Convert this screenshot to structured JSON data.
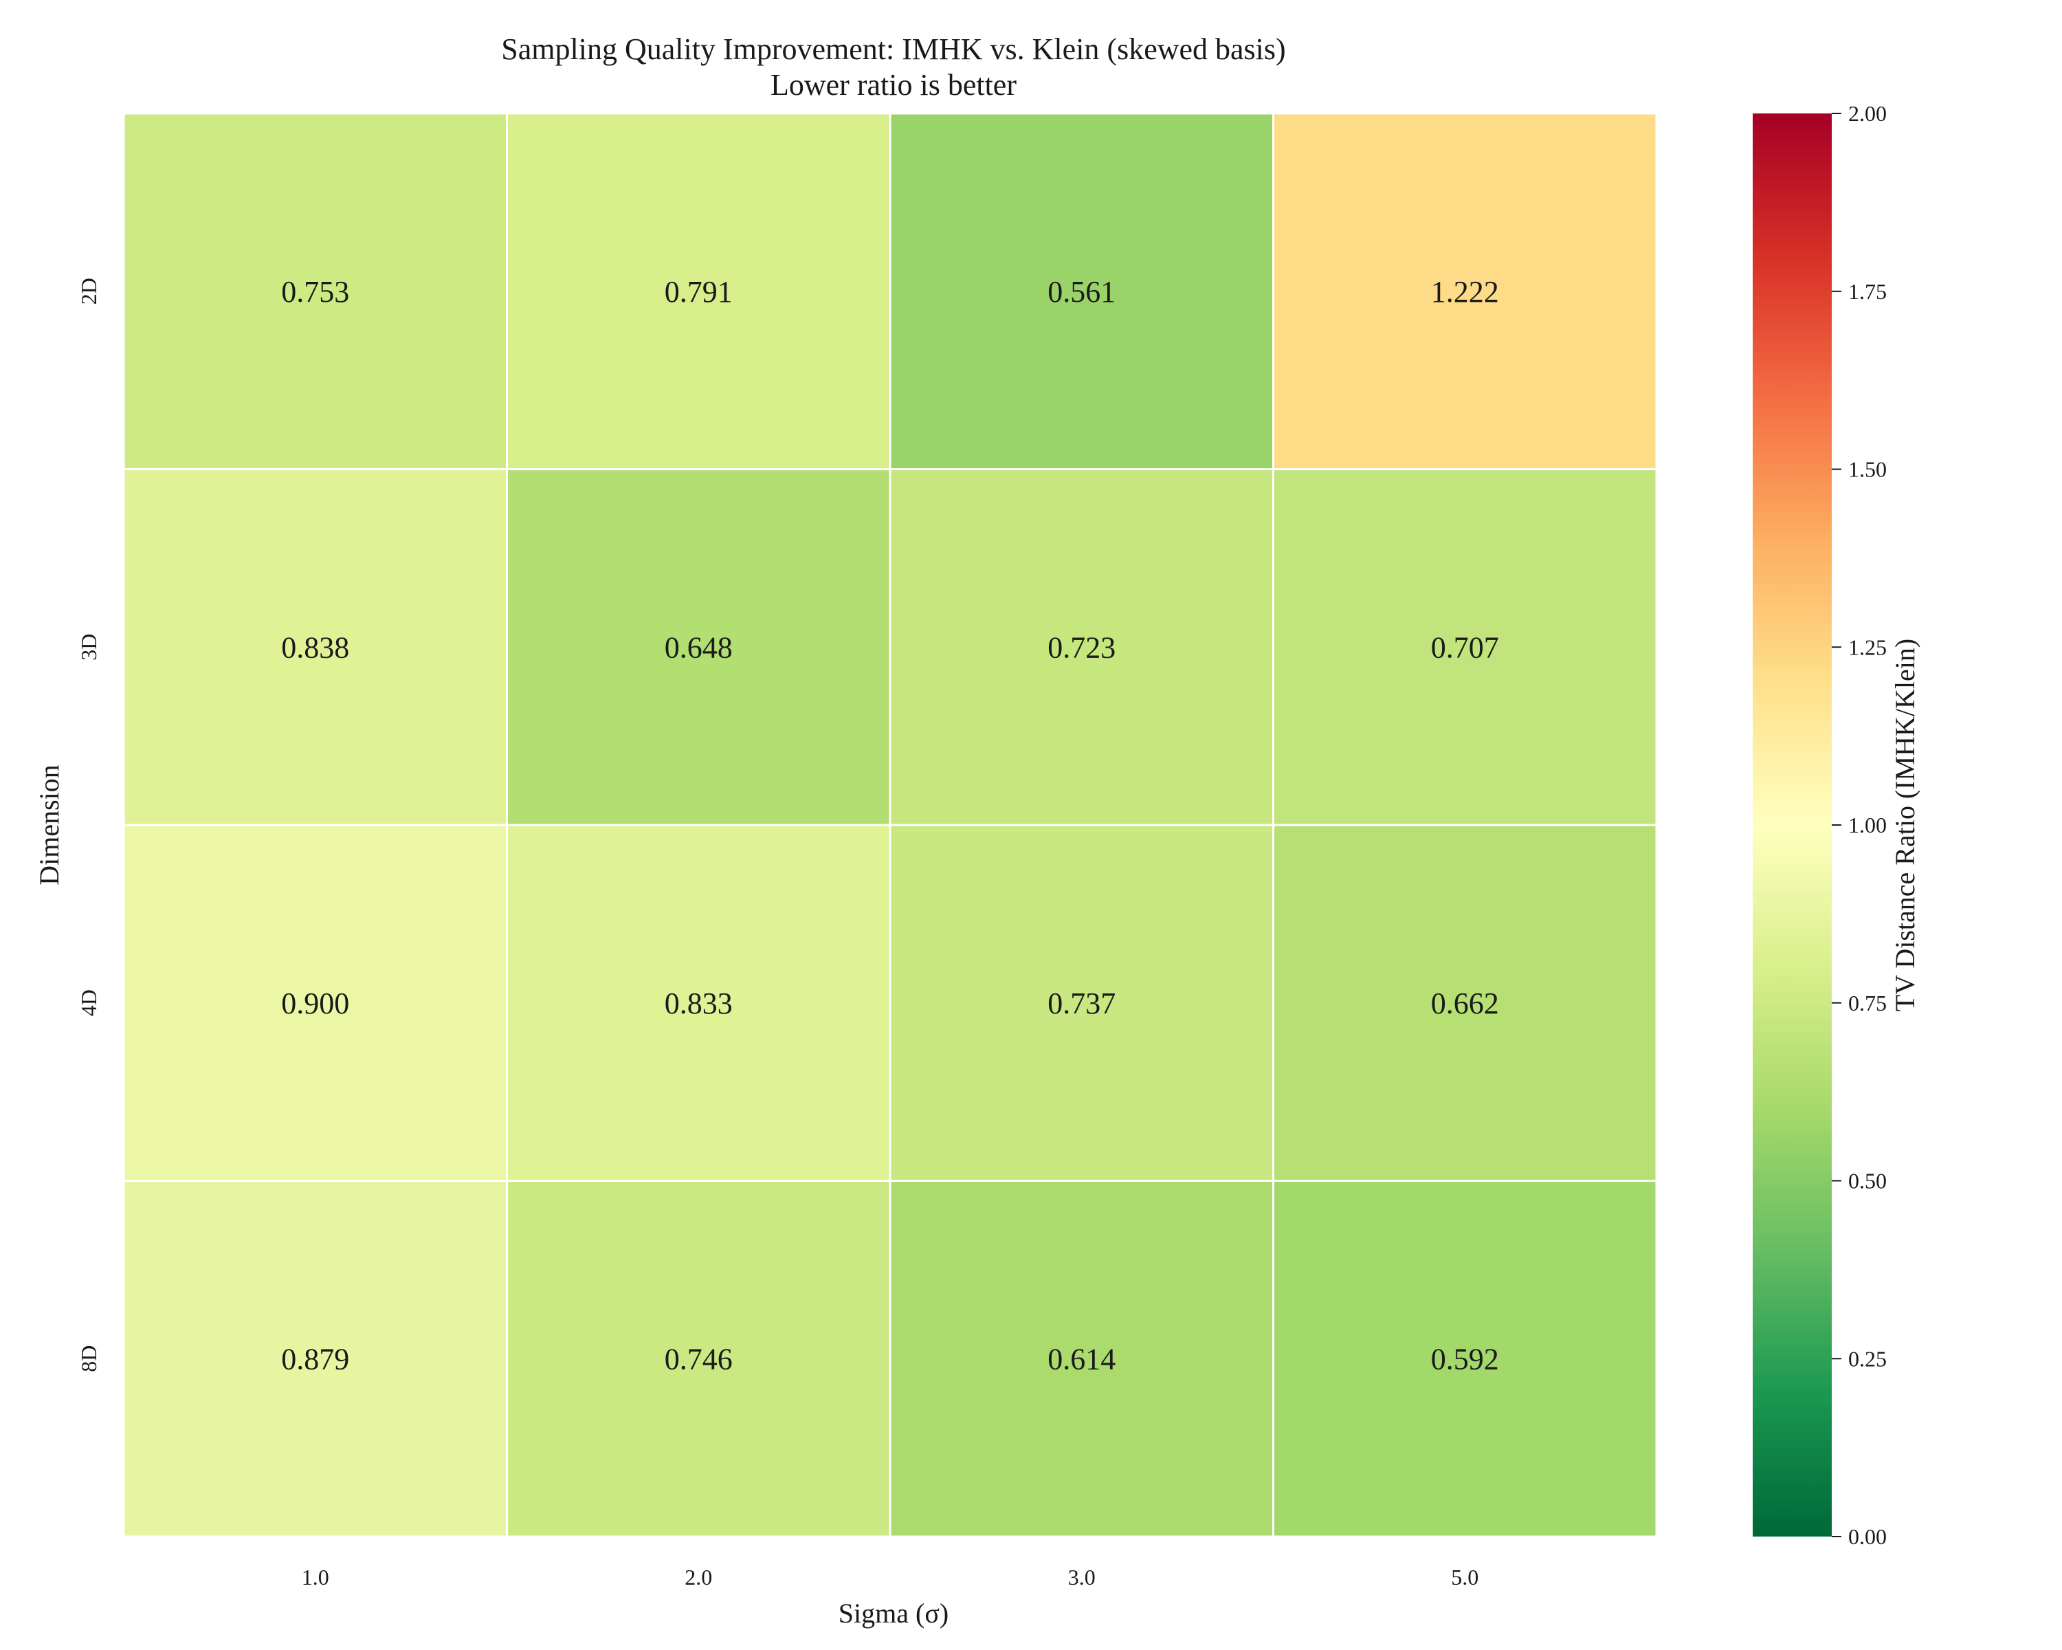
{
  "chart_data": {
    "type": "heatmap",
    "title": "Sampling Quality Improvement: IMHK vs. Klein (skewed basis)",
    "subtitle": "Lower ratio is better",
    "xlabel": "Sigma (σ)",
    "ylabel": "Dimension",
    "x_categories": [
      "1.0",
      "2.0",
      "3.0",
      "5.0"
    ],
    "y_categories": [
      "2D",
      "3D",
      "4D",
      "8D"
    ],
    "values": [
      [
        0.753,
        0.791,
        0.561,
        1.222
      ],
      [
        0.838,
        0.648,
        0.723,
        0.707
      ],
      [
        0.9,
        0.833,
        0.737,
        0.662
      ],
      [
        0.879,
        0.746,
        0.614,
        0.592
      ]
    ],
    "value_labels": [
      [
        "0.753",
        "0.791",
        "0.561",
        "1.222"
      ],
      [
        "0.838",
        "0.648",
        "0.723",
        "0.707"
      ],
      [
        "0.900",
        "0.833",
        "0.737",
        "0.662"
      ],
      [
        "0.879",
        "0.746",
        "0.614",
        "0.592"
      ]
    ],
    "colorbar": {
      "label": "TV Distance Ratio (IMHK/Klein)",
      "range": [
        0.0,
        2.0
      ],
      "ticks": [
        "0.00",
        "0.25",
        "0.50",
        "0.75",
        "1.00",
        "1.25",
        "1.50",
        "1.75",
        "2.00"
      ],
      "colormap": "RdYlGn_r",
      "color_stops": [
        "#006837",
        "#1a9850",
        "#66bd63",
        "#a6d96a",
        "#d9ef8b",
        "#ffffbf",
        "#fee08b",
        "#fdae61",
        "#f46d43",
        "#d73027",
        "#a50026"
      ]
    },
    "grid": false,
    "cell_border_color": "#ffffff"
  }
}
